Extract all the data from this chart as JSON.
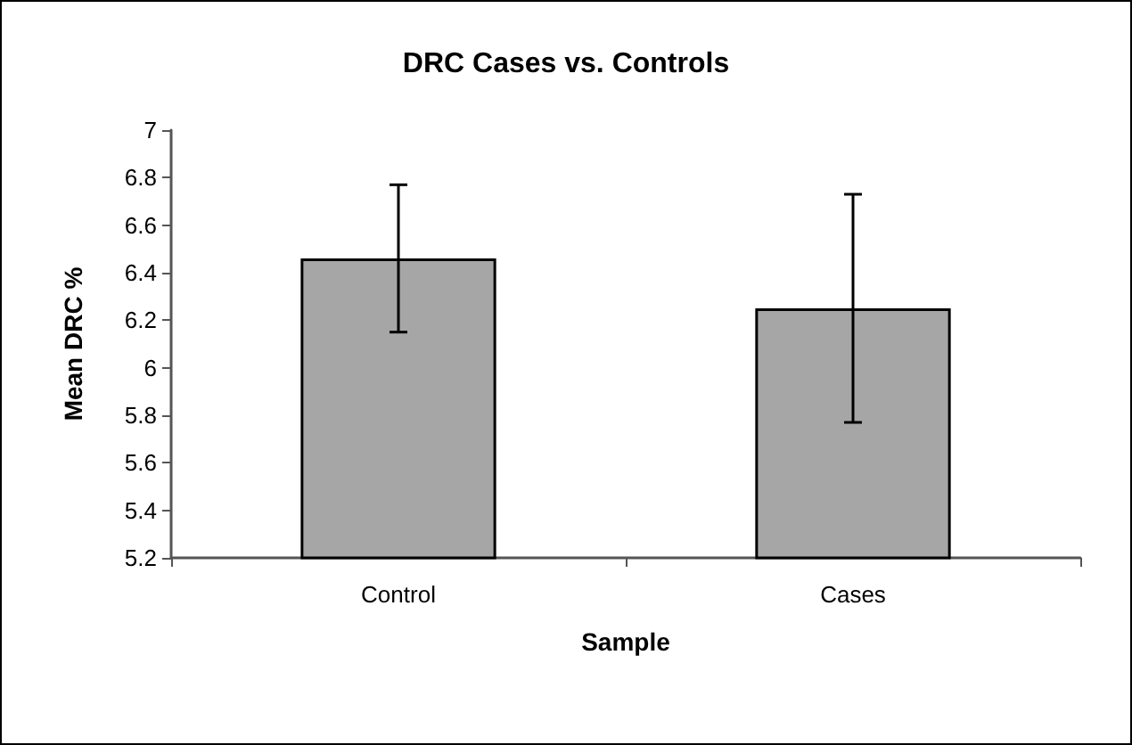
{
  "chart_data": {
    "type": "bar",
    "title": "DRC Cases vs. Controls",
    "xlabel": "Sample",
    "ylabel": "Mean DRC %",
    "categories": [
      "Control",
      "Cases"
    ],
    "values": [
      6.46,
      6.25
    ],
    "errors": [
      0.31,
      0.48
    ],
    "color": "#a6a6a6",
    "ylim": [
      5.2,
      7
    ],
    "yticks": [
      5.2,
      5.4,
      5.6,
      5.8,
      6,
      6.2,
      6.4,
      6.6,
      6.8,
      7
    ],
    "grid": false
  }
}
